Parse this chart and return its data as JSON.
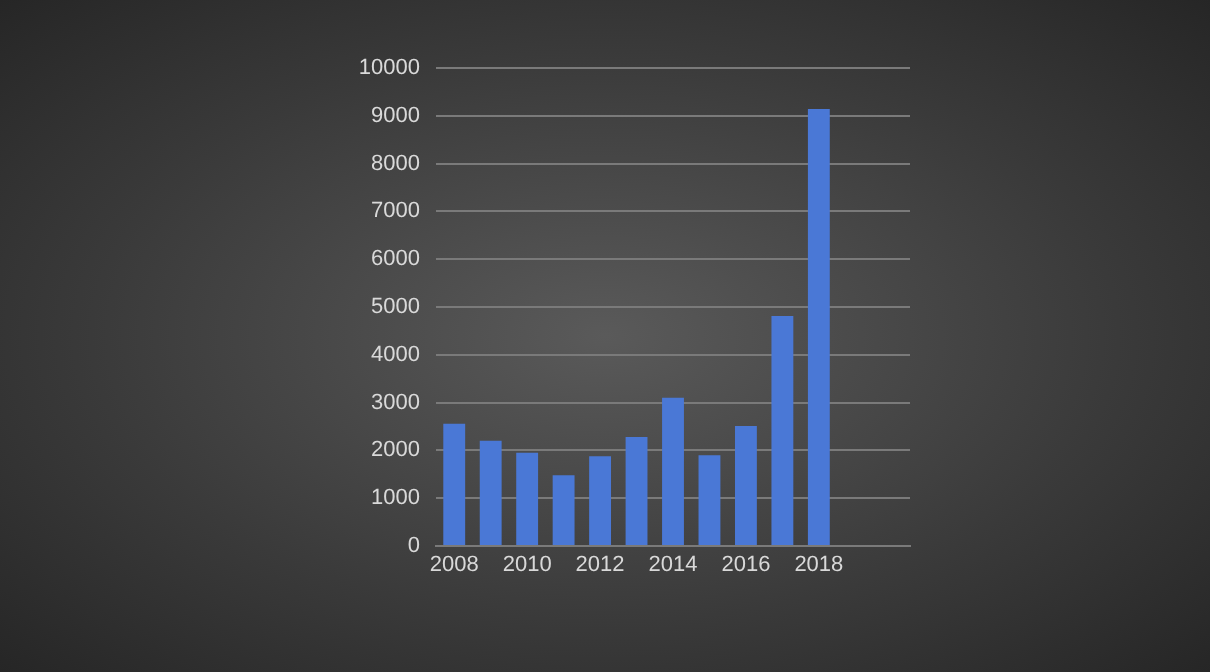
{
  "chart_data": {
    "type": "bar",
    "categories": [
      "2008",
      null,
      "2010",
      null,
      "2012",
      null,
      "2014",
      null,
      "2016",
      null,
      "2018",
      null,
      null
    ],
    "values": [
      2560,
      2200,
      1950,
      1480,
      1880,
      2280,
      3100,
      1900,
      2510,
      4810,
      9140,
      null,
      null
    ],
    "color": "#4a78d6",
    "ylim": [
      0,
      10000
    ],
    "yticks": [
      0,
      1000,
      2000,
      3000,
      4000,
      5000,
      6000,
      7000,
      8000,
      9000,
      10000
    ],
    "grid": "y",
    "legend": false
  }
}
